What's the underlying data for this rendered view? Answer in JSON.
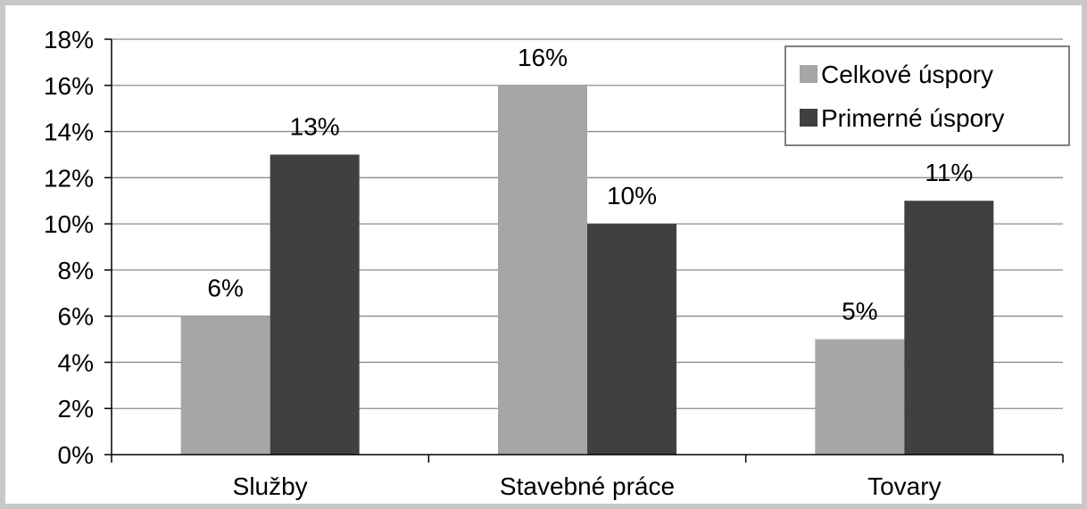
{
  "chart_data": {
    "type": "bar",
    "categories": [
      "Služby",
      "Stavebné práce",
      "Tovary"
    ],
    "series": [
      {
        "name": "Celkové úspory",
        "values": [
          6,
          16,
          5
        ],
        "labels": [
          "6%",
          "16%",
          "5%"
        ],
        "color": "#a6a6a6"
      },
      {
        "name": "Primerné úspory",
        "values": [
          13,
          10,
          11
        ],
        "labels": [
          "13%",
          "10%",
          "11%"
        ],
        "color": "#404040"
      }
    ],
    "ylim": [
      0,
      18
    ],
    "yticks": [
      "0%",
      "2%",
      "4%",
      "6%",
      "8%",
      "10%",
      "12%",
      "14%",
      "16%",
      "18%"
    ],
    "ytick_values": [
      0,
      2,
      4,
      6,
      8,
      10,
      12,
      14,
      16,
      18
    ],
    "grid": true,
    "legend_position": "top-right",
    "title": "",
    "xlabel": "",
    "ylabel": ""
  }
}
